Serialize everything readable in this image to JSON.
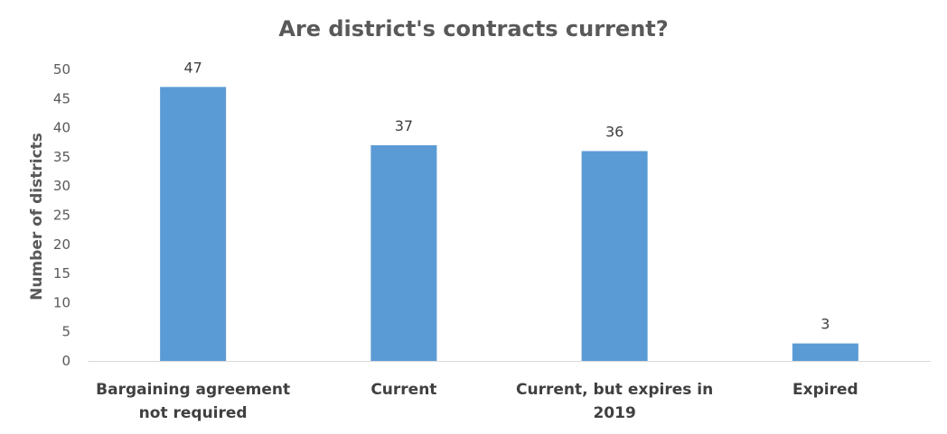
{
  "chart_data": {
    "type": "bar",
    "title": "Are district's contracts current?",
    "xlabel": "",
    "ylabel": "Number of districts",
    "categories": [
      [
        "Bargaining agreement",
        "not required"
      ],
      [
        "Current"
      ],
      [
        "Current, but expires in",
        "2019"
      ],
      [
        "Expired"
      ]
    ],
    "values": [
      47,
      37,
      36,
      3
    ],
    "data_labels": [
      "47",
      "37",
      "36",
      "3"
    ],
    "ylim": [
      0,
      50
    ],
    "yticks": [
      0,
      5,
      10,
      15,
      20,
      25,
      30,
      35,
      40,
      45,
      50
    ],
    "grid": false,
    "legend": "none",
    "bar_color": "#5B9BD5",
    "axis_color": "#D9D9D9"
  }
}
